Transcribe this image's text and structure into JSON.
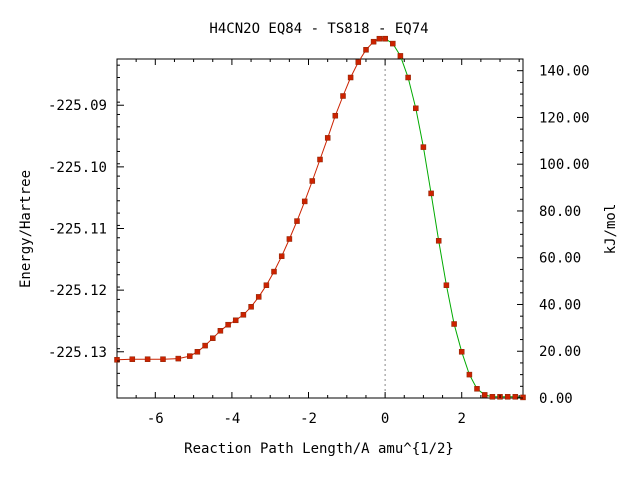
{
  "chart_data": {
    "type": "line",
    "title": "H4CN2O   EQ84 - TS818 - EQ74",
    "xlabel": "Reaction Path Length/A amu^{1/2}",
    "ylabel": "Energy/Hartree",
    "y2label": "kJ/mol",
    "xlim": [
      -7.0,
      3.6
    ],
    "ylim": [
      -225.1375,
      -225.0825
    ],
    "y2lim": [
      0,
      145
    ],
    "x_ticks": [
      "-6",
      "-4",
      "-2",
      "0",
      "2"
    ],
    "x_tick_values": [
      -6,
      -4,
      -2,
      0,
      2
    ],
    "y_ticks": [
      "-225.09",
      "-225.10",
      "-225.11",
      "-225.12",
      "-225.13"
    ],
    "y_tick_values": [
      -225.09,
      -225.1,
      -225.11,
      -225.12,
      -225.13
    ],
    "y2_ticks": [
      "140.00",
      "120.00",
      "100.00",
      "80.00",
      "60.00",
      "40.00",
      "20.00",
      "0.00"
    ],
    "y2_tick_values": [
      140,
      120,
      100,
      80,
      60,
      40,
      20,
      0
    ],
    "ts_x": 0,
    "colors": {
      "markers": "#cc2200",
      "curve_left": "#cc2200",
      "curve_right": "#00aa00",
      "ts_line": "#888888"
    },
    "series": [
      {
        "x": [
          -7.0,
          -6.6,
          -6.2,
          -5.8,
          -5.4,
          -5.1,
          -4.9,
          -4.7,
          -4.5,
          -4.3,
          -4.1,
          -3.9,
          -3.7,
          -3.5,
          -3.3,
          -3.1,
          -2.9,
          -2.7,
          -2.5,
          -2.3,
          -2.1,
          -1.9,
          -1.7,
          -1.5,
          -1.3,
          -1.1,
          -0.9,
          -0.7,
          -0.5,
          -0.3,
          -0.15,
          0.0
        ],
        "y": [
          -225.1313,
          -225.1312,
          -225.1312,
          -225.1312,
          -225.1311,
          -225.1307,
          -225.13,
          -225.129,
          -225.1278,
          -225.1266,
          -225.1256,
          -225.1249,
          -225.124,
          -225.1227,
          -225.1211,
          -225.1192,
          -225.117,
          -225.1145,
          -225.1117,
          -225.1088,
          -225.1056,
          -225.1023,
          -225.0988,
          -225.0953,
          -225.0917,
          -225.0885,
          -225.0855,
          -225.083,
          -225.081,
          -225.0797,
          -225.0792,
          -225.0792
        ]
      },
      {
        "x": [
          0.0,
          0.2,
          0.4,
          0.6,
          0.8,
          1.0,
          1.2,
          1.4,
          1.6,
          1.8,
          2.0,
          2.2,
          2.4,
          2.6,
          2.8,
          3.0,
          3.2,
          3.4,
          3.6
        ],
        "y": [
          -225.0792,
          -225.08,
          -225.082,
          -225.0855,
          -225.0905,
          -225.0968,
          -225.1043,
          -225.112,
          -225.1192,
          -225.1255,
          -225.13,
          -225.1337,
          -225.136,
          -225.137,
          -225.1373,
          -225.1373,
          -225.1373,
          -225.1373,
          -225.1374
        ]
      }
    ]
  }
}
